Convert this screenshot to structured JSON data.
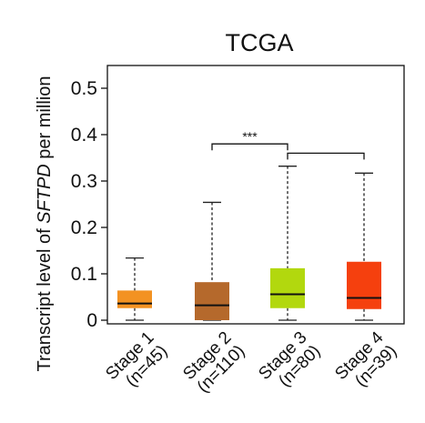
{
  "chart_data": {
    "type": "box",
    "title": "TCGA",
    "ylabel": {
      "prefix": "Transcript level of ",
      "gene": "SFTPD",
      "suffix": " per million"
    },
    "ylim": [
      0,
      0.5
    ],
    "yticks": [
      {
        "value": 0,
        "label": "0"
      },
      {
        "value": 0.1,
        "label": "0.1"
      },
      {
        "value": 0.2,
        "label": "0.2"
      },
      {
        "value": 0.3,
        "label": "0.3"
      },
      {
        "value": 0.4,
        "label": "0.4"
      },
      {
        "value": 0.5,
        "label": "0.5"
      }
    ],
    "categories": [
      {
        "name": "Stage 1",
        "n": "(n=45)"
      },
      {
        "name": "Stage 2",
        "n": "(n=110)"
      },
      {
        "name": "Stage 3",
        "n": "(n=80)"
      },
      {
        "name": "Stage 4",
        "n": "(n=39)"
      }
    ],
    "boxes": [
      {
        "min": 0.0,
        "q1": 0.026,
        "median": 0.036,
        "q3": 0.064,
        "max": 0.134,
        "color": "#f39222"
      },
      {
        "min": 0.0,
        "q1": 0.0,
        "median": 0.032,
        "q3": 0.082,
        "max": 0.254,
        "color": "#b5692c"
      },
      {
        "min": 0.0,
        "q1": 0.026,
        "median": 0.056,
        "q3": 0.112,
        "max": 0.332,
        "color": "#b2d80e"
      },
      {
        "min": 0.0,
        "q1": 0.024,
        "median": 0.048,
        "q3": 0.126,
        "max": 0.317,
        "color": "#f5400e"
      }
    ],
    "significance": [
      {
        "from": 1,
        "to": 2,
        "y": 0.38,
        "label": "***"
      },
      {
        "from": 2,
        "to": 3,
        "y": 0.36,
        "label": ""
      }
    ],
    "grid": false
  }
}
